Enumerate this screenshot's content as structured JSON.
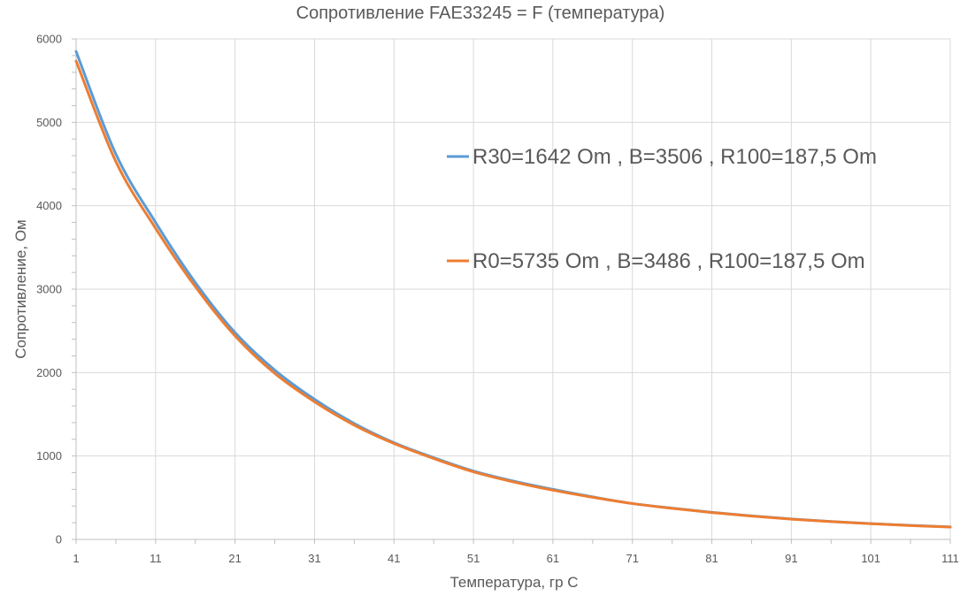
{
  "chart_data": {
    "type": "line",
    "title": "Сопротивление FAE33245 = F (температура)",
    "xlabel": "Температура, гр С",
    "ylabel": "Сопротивление, Ом",
    "xlim": [
      1,
      111
    ],
    "ylim": [
      0,
      6000
    ],
    "x_ticks": [
      1,
      11,
      21,
      31,
      41,
      51,
      61,
      71,
      81,
      91,
      101,
      111
    ],
    "y_ticks": [
      0,
      1000,
      2000,
      3000,
      4000,
      5000,
      6000
    ],
    "grid": true,
    "legend_position": "right, inside plot",
    "x": [
      1,
      6,
      11,
      16,
      21,
      26,
      31,
      36,
      41,
      46,
      51,
      56,
      61,
      66,
      71,
      76,
      81,
      86,
      91,
      96,
      101,
      106,
      111
    ],
    "series": [
      {
        "name": "R30=1642 Om , B=3506 , R100=187,5 Om",
        "color": "#5b9bd5",
        "values": [
          5850,
          4620,
          3800,
          3080,
          2480,
          2030,
          1680,
          1390,
          1160,
          980,
          820,
          700,
          600,
          510,
          430,
          375,
          325,
          282,
          245,
          215,
          190,
          168,
          150
        ]
      },
      {
        "name": "R0=5735 Om , B=3486 , R100=187,5 Om",
        "color": "#ed7d31",
        "values": [
          5735,
          4530,
          3730,
          3030,
          2440,
          1990,
          1650,
          1370,
          1150,
          970,
          810,
          690,
          590,
          505,
          430,
          372,
          322,
          280,
          243,
          213,
          188,
          166,
          148
        ]
      }
    ]
  }
}
